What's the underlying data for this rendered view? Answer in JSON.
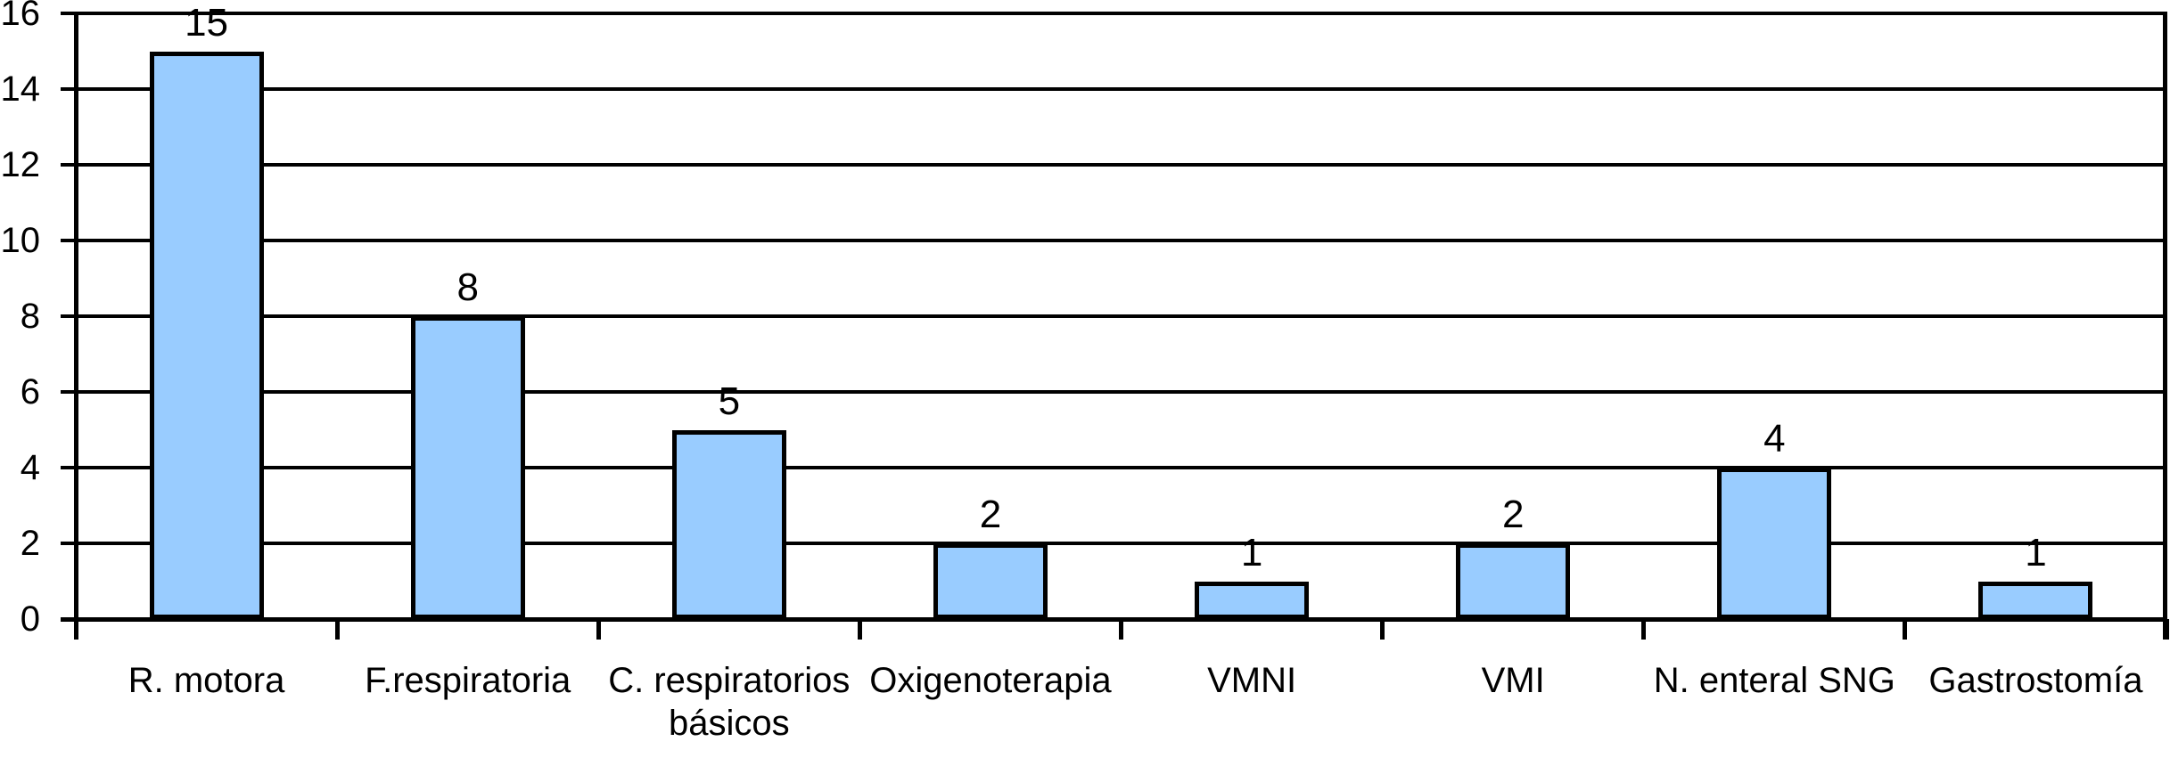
{
  "chart_data": {
    "type": "bar",
    "title": "",
    "xlabel": "",
    "ylabel": "",
    "categories": [
      "R. motora",
      "F.respiratoria",
      "C. respiratorios básicos",
      "Oxigenoterapia",
      "VMNI",
      "VMI",
      "N. enteral SNG",
      "Gastrostomía"
    ],
    "values": [
      15,
      8,
      5,
      2,
      1,
      2,
      4,
      1
    ],
    "data_labels": [
      "15",
      "8",
      "5",
      "2",
      "1",
      "2",
      "4",
      "1"
    ],
    "yticks": [
      0,
      2,
      4,
      6,
      8,
      10,
      12,
      14,
      16
    ],
    "ylim": [
      0,
      16
    ],
    "grid": true,
    "legend": false,
    "colors": {
      "bar_fill": "#99CCFF",
      "bar_border": "#000000",
      "line": "#000000",
      "text": "#000000",
      "background": "#FFFFFF"
    }
  }
}
